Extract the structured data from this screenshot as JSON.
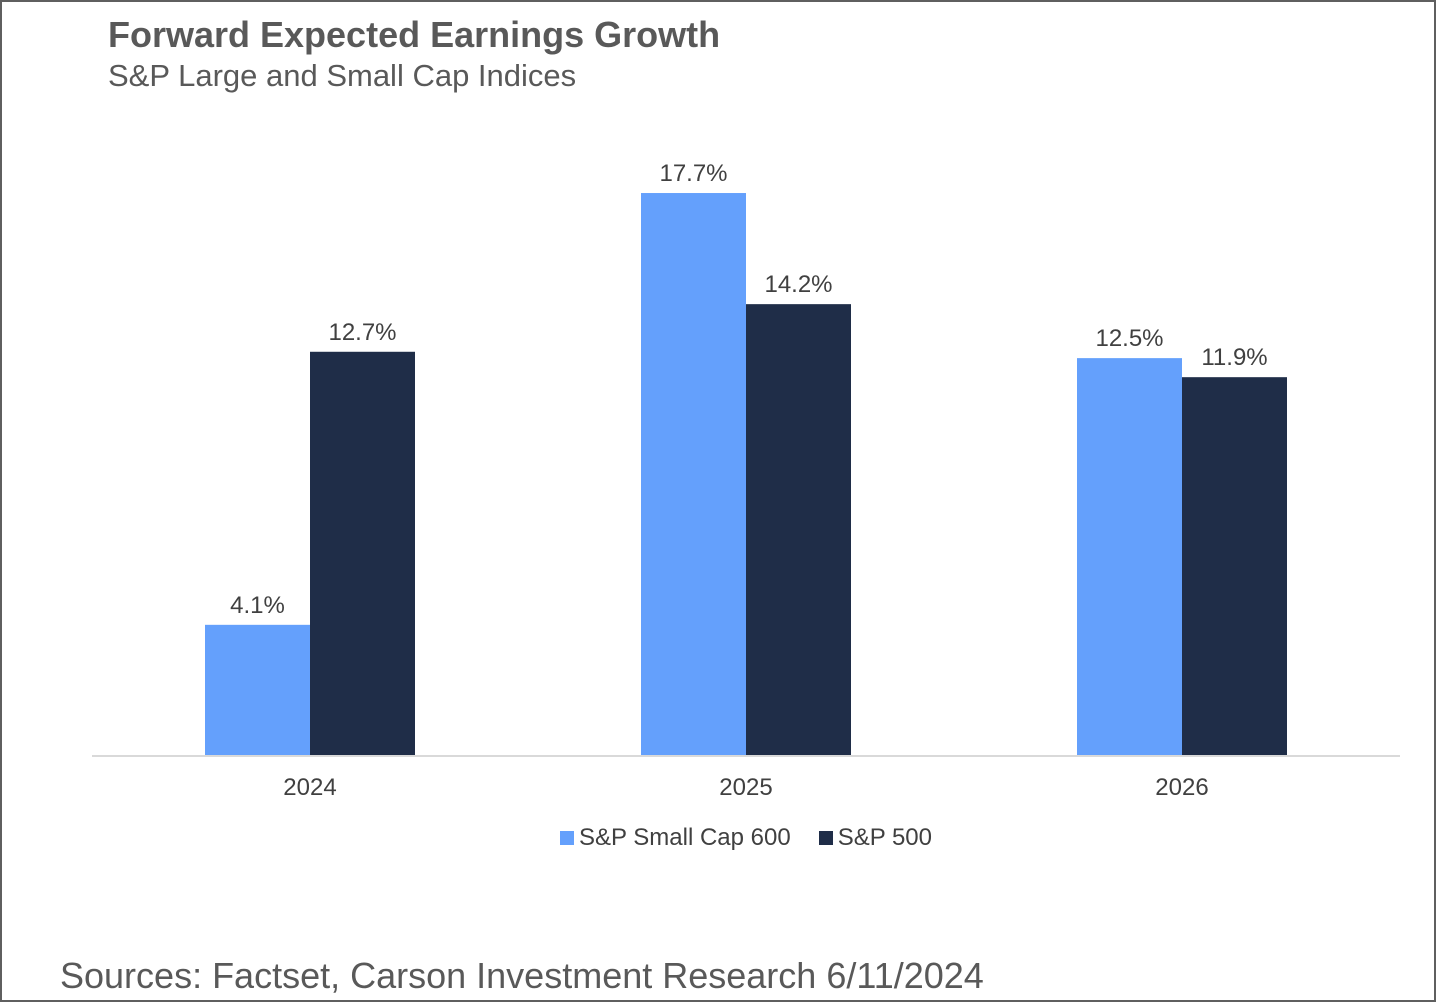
{
  "header": {
    "title": "Forward Expected Earnings Growth",
    "subtitle": "S&P Large and Small Cap Indices"
  },
  "footer": {
    "source": "Sources: Factset, Carson Investment Research 6/11/2024"
  },
  "chart_data": {
    "type": "bar",
    "title": "Forward Expected Earnings Growth",
    "subtitle": "S&P Large and Small Cap Indices",
    "categories": [
      "2024",
      "2025",
      "2026"
    ],
    "series": [
      {
        "name": "S&P Small Cap 600",
        "color": "#64a0fc",
        "values": [
          4.1,
          17.7,
          12.5
        ],
        "labels": [
          "4.1%",
          "17.7%",
          "12.5%"
        ]
      },
      {
        "name": "S&P 500",
        "color": "#1f2d48",
        "values": [
          12.7,
          14.2,
          11.9
        ],
        "labels": [
          "12.7%",
          "14.2%",
          "11.9%"
        ]
      }
    ],
    "xlabel": "",
    "ylabel": "",
    "ylim": [
      0,
      20
    ],
    "grid": false,
    "legend": "bottom",
    "axis_color": "#d9d9d9"
  }
}
